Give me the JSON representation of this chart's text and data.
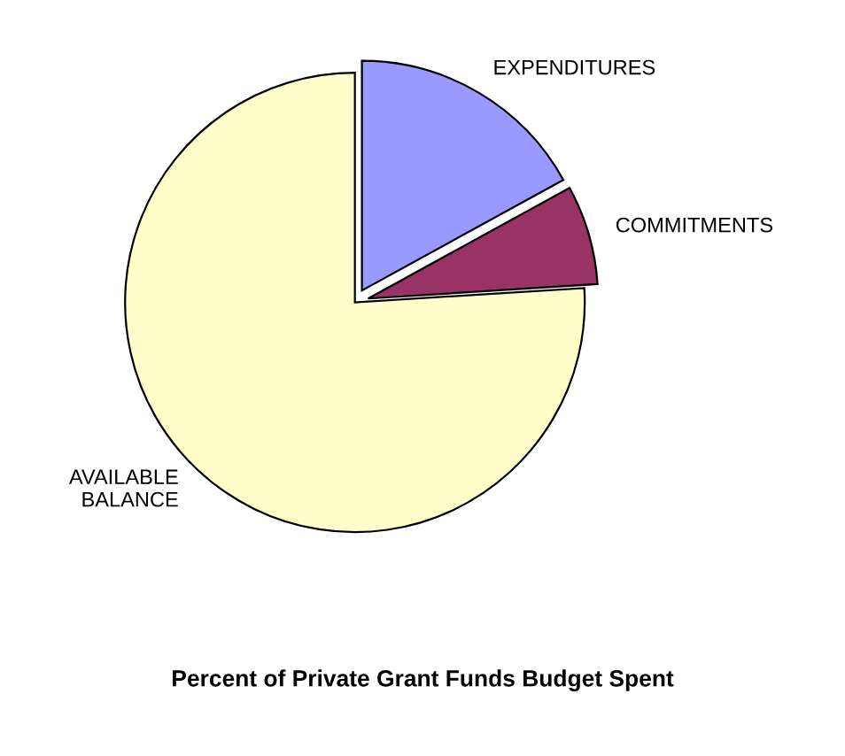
{
  "chart_data": {
    "type": "pie",
    "title": "Percent of Private Grant Funds Budget Spent",
    "categories": [
      "EXPENDITURES",
      "COMMITMENTS",
      "AVAILABLE\nBALANCE"
    ],
    "values": [
      17,
      7,
      76
    ],
    "colors": [
      "#9999ff",
      "#993366",
      "#ffffcc"
    ],
    "legend": false
  }
}
